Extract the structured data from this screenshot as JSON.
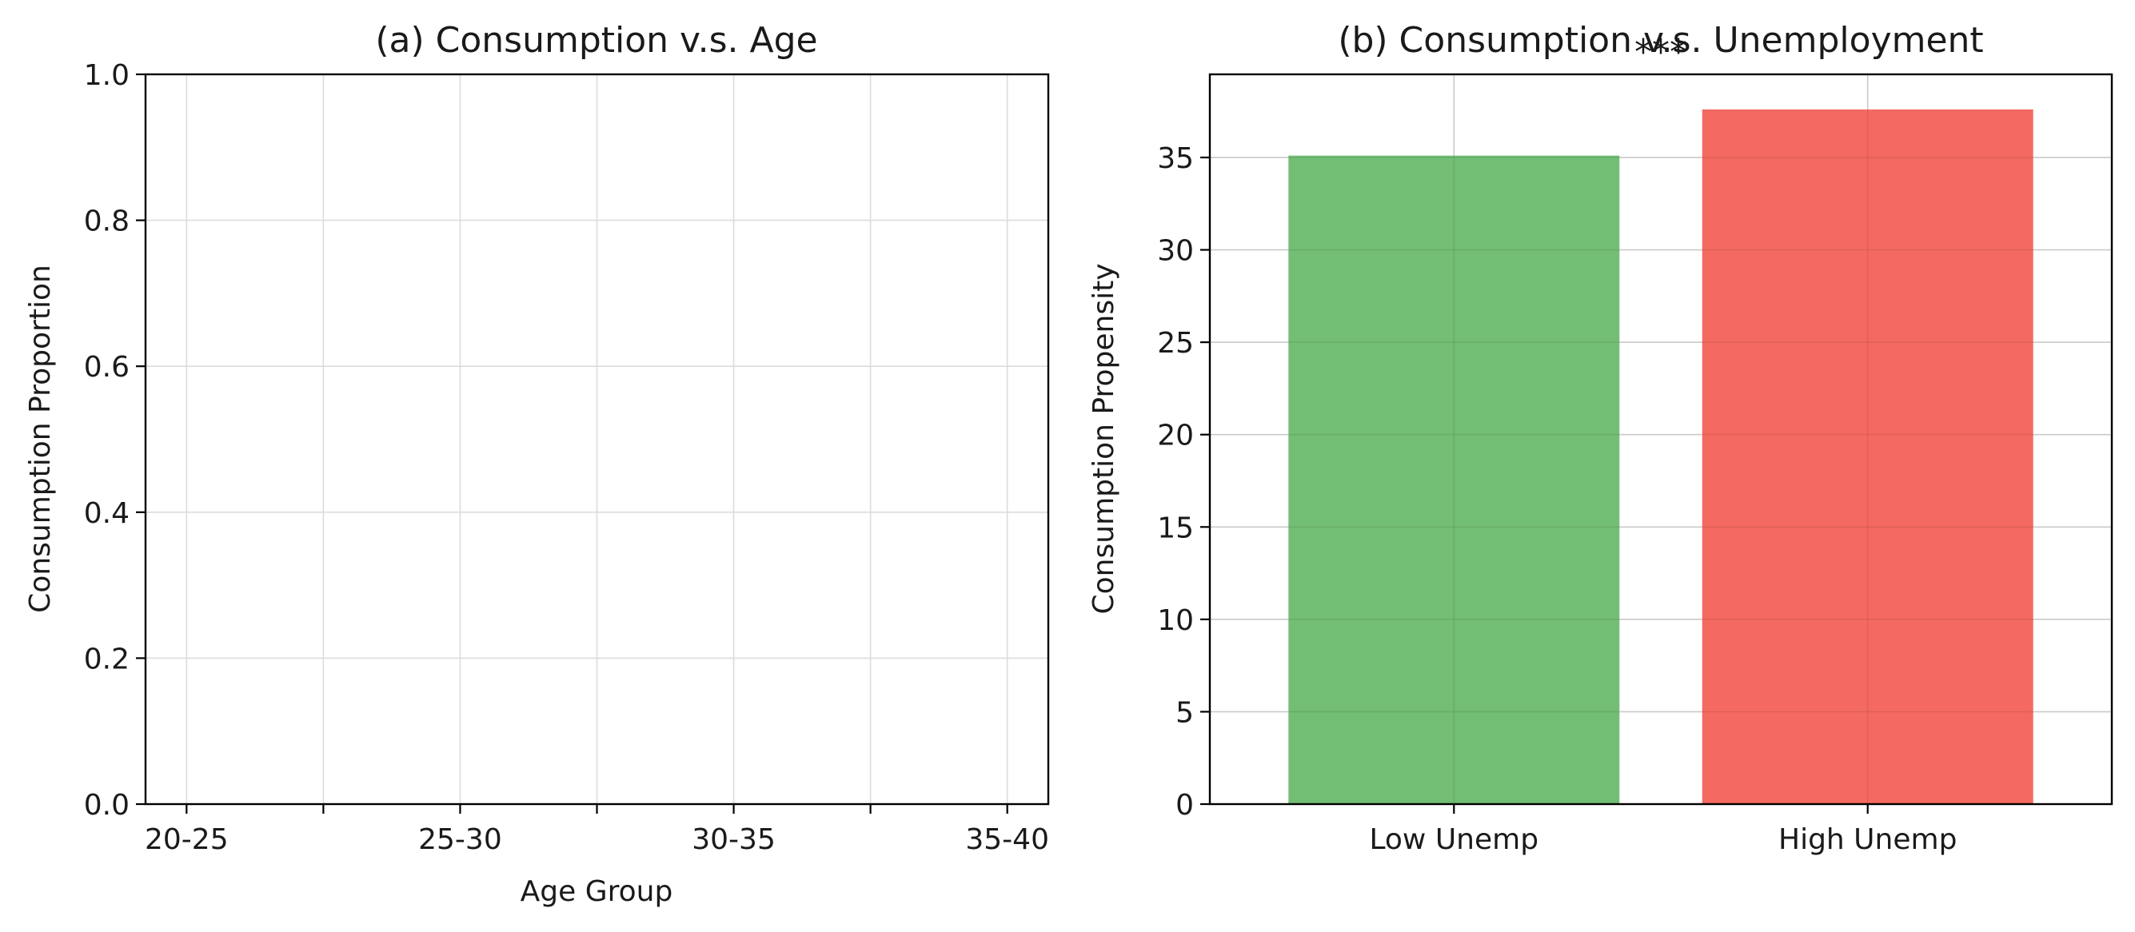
{
  "colors": {
    "low_unemp": "#72be74",
    "high_unemp": "#f46a60"
  },
  "chart_data": [
    {
      "type": "line",
      "title": "(a) Consumption v.s. Age",
      "xlabel": "Age Group",
      "ylabel": "Consumption Proportion",
      "categories": [
        "20-25",
        "25-30",
        "30-35",
        "35-40"
      ],
      "yticks": [
        "0.0",
        "0.2",
        "0.4",
        "0.6",
        "0.8",
        "1.0"
      ],
      "ylim": [
        0,
        1
      ],
      "grid": true,
      "series": []
    },
    {
      "type": "bar",
      "title": "(b) Consumption v.s. Unemployment",
      "xlabel": "",
      "ylabel": "Consumption Propensity",
      "categories": [
        "Low Unemp",
        "High Unemp"
      ],
      "values": [
        35.1,
        37.6
      ],
      "yticks": [
        "0",
        "5",
        "10",
        "15",
        "20",
        "25",
        "30",
        "35"
      ],
      "ylim": [
        0,
        39.5
      ],
      "grid": true,
      "annotation": "***"
    }
  ]
}
